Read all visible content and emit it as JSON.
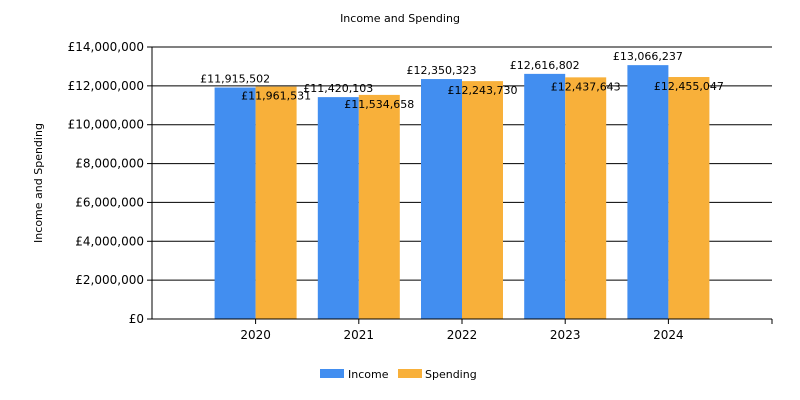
{
  "chart_data": {
    "type": "bar",
    "title": "Income and Spending",
    "xlabel": "",
    "ylabel": "Income and Spending",
    "categories": [
      "2020",
      "2021",
      "2022",
      "2023",
      "2024"
    ],
    "series": [
      {
        "name": "Income",
        "color": "#428ef0",
        "values": [
          11915502,
          11420103,
          12350323,
          12616802,
          13066237
        ],
        "labels": [
          "£11,915,502",
          "£11,420,103",
          "£12,350,323",
          "£12,616,802",
          "£13,066,237"
        ]
      },
      {
        "name": "Spending",
        "color": "#f8b03a",
        "values": [
          11961531,
          11534658,
          12243730,
          12437643,
          12455047
        ],
        "labels": [
          "£11,961,531",
          "£11,534,658",
          "£12,243,730",
          "£12,437,643",
          "£12,455,047"
        ]
      }
    ],
    "ylim": [
      0,
      14000000
    ],
    "yticks": [
      0,
      2000000,
      4000000,
      6000000,
      8000000,
      10000000,
      12000000,
      14000000
    ],
    "ytick_labels": [
      "£0",
      "£2,000,000",
      "£4,000,000",
      "£6,000,000",
      "£8,000,000",
      "£10,000,000",
      "£12,000,000",
      "£14,000,000"
    ],
    "grid": true,
    "legend_position": "bottom"
  }
}
